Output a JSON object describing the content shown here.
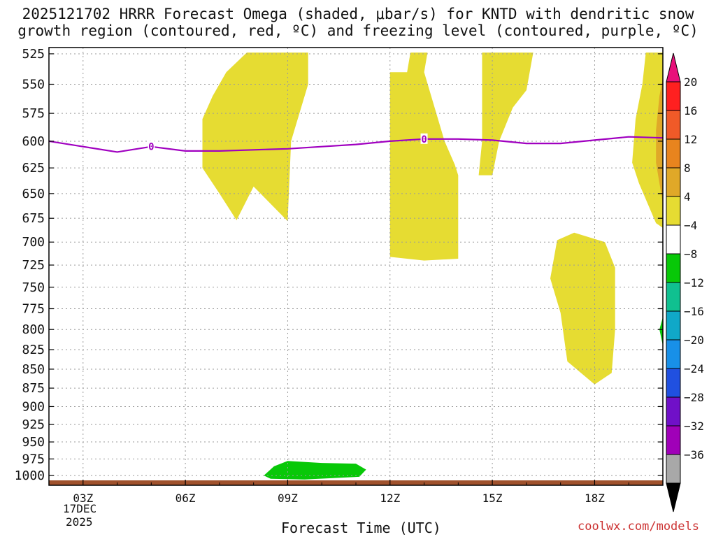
{
  "chart_data": {
    "type": "heatmap",
    "title": "2025121702 HRRR Forecast Omega (shaded, μbar/s) for KNTD with dendritic snow",
    "subtitle": "growth region (contoured, red, ºC) and freezing level (contoured, purple, ºC)",
    "xlabel": "Forecast Time (UTC)",
    "credit": "coolwx.com/models",
    "x_ticks": [
      "03Z",
      "06Z",
      "09Z",
      "12Z",
      "15Z",
      "18Z"
    ],
    "x_tick_hours": [
      3,
      6,
      9,
      12,
      15,
      18
    ],
    "x_range_hours": [
      2,
      20
    ],
    "date_labels": [
      "17DEC",
      "2025"
    ],
    "y_ticks": [
      525,
      550,
      575,
      600,
      625,
      650,
      675,
      700,
      725,
      750,
      775,
      800,
      825,
      850,
      875,
      900,
      925,
      950,
      975,
      1000
    ],
    "y_range": [
      520,
      1015
    ],
    "y_scale": "log-pressure",
    "grid": true,
    "colorbar": {
      "labels": [
        "20",
        "16",
        "12",
        "8",
        "4",
        "−4",
        "−8",
        "−12",
        "−16",
        "−20",
        "−24",
        "−28",
        "−32",
        "−36"
      ],
      "colors": [
        "#ff2020",
        "#f05a28",
        "#e8841e",
        "#e0a828",
        "#e6dc32",
        "#ffffff",
        "#08c808",
        "#10c090",
        "#10a8c8",
        "#1890e8",
        "#2050e0",
        "#7010c8",
        "#a000b8",
        "#a8a8a8"
      ],
      "top_arrow_color": "#e8107a",
      "bottom_arrow_color": "#000000"
    },
    "freezing_level": {
      "label": "0",
      "color": "#a000c0",
      "label_points": [
        [
          5,
          605
        ],
        [
          13,
          598
        ]
      ],
      "points": [
        [
          2,
          600
        ],
        [
          3,
          605
        ],
        [
          4,
          610
        ],
        [
          5,
          605
        ],
        [
          6,
          609
        ],
        [
          7,
          609
        ],
        [
          8,
          608
        ],
        [
          9,
          607
        ],
        [
          10,
          605
        ],
        [
          11,
          603
        ],
        [
          12,
          600
        ],
        [
          13,
          598
        ],
        [
          14,
          598
        ],
        [
          15,
          599
        ],
        [
          16,
          602
        ],
        [
          17,
          602
        ],
        [
          18,
          599
        ],
        [
          19,
          596
        ],
        [
          20,
          597
        ]
      ]
    },
    "omega_regions": [
      {
        "value_band": "4 to 8",
        "color": "#e6dc32",
        "points": [
          [
            7.2,
            540
          ],
          [
            7.8,
            524
          ],
          [
            9.6,
            524
          ],
          [
            9.6,
            550
          ],
          [
            9.1,
            600
          ],
          [
            9.0,
            678
          ],
          [
            8.0,
            643
          ],
          [
            7.5,
            677
          ],
          [
            7.0,
            650
          ],
          [
            6.5,
            625
          ],
          [
            6.5,
            580
          ],
          [
            6.8,
            560
          ]
        ]
      },
      {
        "value_band": "4 to 8",
        "color": "#e6dc32",
        "points": [
          [
            12.0,
            540
          ],
          [
            12.5,
            540
          ],
          [
            12.6,
            524
          ],
          [
            13.1,
            524
          ],
          [
            13.0,
            540
          ],
          [
            13.6,
            600
          ],
          [
            13.9,
            622
          ],
          [
            14.0,
            632
          ],
          [
            14.0,
            718
          ],
          [
            13.0,
            720
          ],
          [
            12.0,
            716
          ]
        ]
      },
      {
        "value_band": "4 to 8",
        "color": "#e6dc32",
        "points": [
          [
            14.7,
            524
          ],
          [
            16.2,
            524
          ],
          [
            16.0,
            555
          ],
          [
            15.6,
            570
          ],
          [
            15.2,
            600
          ],
          [
            15.0,
            632
          ],
          [
            14.6,
            632
          ],
          [
            14.7,
            600
          ],
          [
            14.7,
            560
          ]
        ]
      },
      {
        "value_band": "4 to 8",
        "color": "#e6dc32",
        "points": [
          [
            19.5,
            524
          ],
          [
            20.0,
            524
          ],
          [
            20.0,
            685
          ],
          [
            19.8,
            680
          ],
          [
            19.3,
            640
          ],
          [
            19.1,
            620
          ],
          [
            19.2,
            580
          ],
          [
            19.4,
            550
          ]
        ]
      },
      {
        "value_band": "8 to 12",
        "color": "#e0a828",
        "points": [
          [
            19.9,
            560
          ],
          [
            20.0,
            545
          ],
          [
            20.0,
            660
          ],
          [
            19.8,
            620
          ],
          [
            19.8,
            590
          ]
        ]
      },
      {
        "value_band": "4 to 8",
        "color": "#e6dc32",
        "points": [
          [
            16.9,
            698
          ],
          [
            17.4,
            690
          ],
          [
            18.3,
            700
          ],
          [
            18.6,
            728
          ],
          [
            18.6,
            800
          ],
          [
            18.5,
            855
          ],
          [
            18.0,
            870
          ],
          [
            17.6,
            855
          ],
          [
            17.2,
            840
          ],
          [
            17.0,
            780
          ],
          [
            16.7,
            740
          ]
        ]
      },
      {
        "value_band": "-4 to -8",
        "color": "#08c808",
        "points": [
          [
            8.3,
            1000
          ],
          [
            8.6,
            986
          ],
          [
            9.0,
            978
          ],
          [
            10.0,
            981
          ],
          [
            11.0,
            982
          ],
          [
            11.3,
            991
          ],
          [
            11.1,
            1002
          ],
          [
            9.5,
            1006
          ],
          [
            8.5,
            1005
          ]
        ]
      },
      {
        "value_band": "-4 to -8",
        "color": "#08c808",
        "points": [
          [
            20.0,
            785
          ],
          [
            19.9,
            800
          ],
          [
            20.0,
            820
          ]
        ]
      }
    ],
    "ground_color": "#a0522d"
  }
}
